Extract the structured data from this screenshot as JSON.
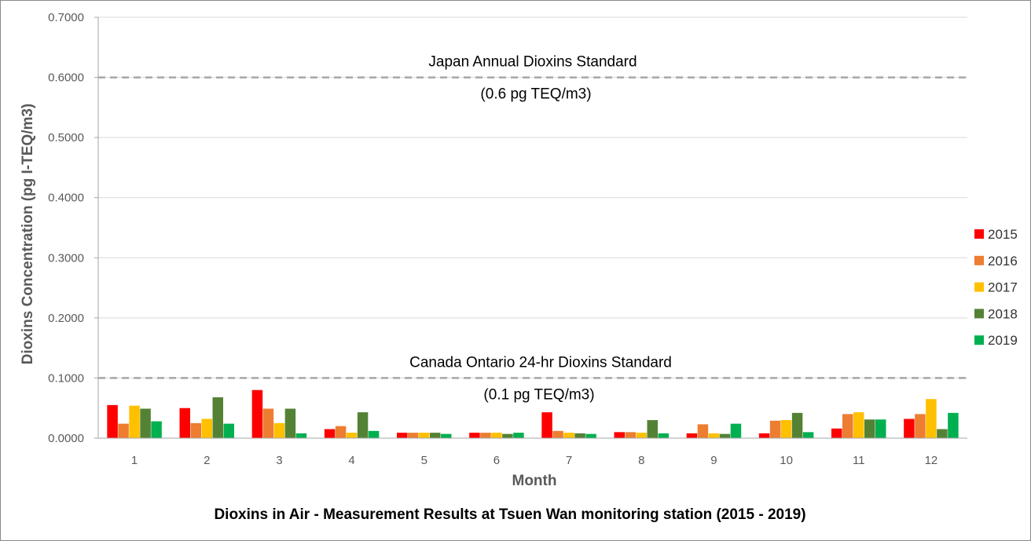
{
  "chart_data": {
    "type": "bar",
    "title": "Dioxins in Air - Measurement Results at Tsuen Wan monitoring station (2015 - 2019)",
    "xlabel": "Month",
    "ylabel": "Dioxins Concentration (pg I-TEQ/m3)",
    "ylim": [
      0,
      0.7
    ],
    "yticks": [
      "0.0000",
      "0.1000",
      "0.2000",
      "0.3000",
      "0.4000",
      "0.5000",
      "0.6000",
      "0.7000"
    ],
    "grid": true,
    "legend_position": "right",
    "categories": [
      "1",
      "2",
      "3",
      "4",
      "5",
      "6",
      "7",
      "8",
      "9",
      "10",
      "11",
      "12"
    ],
    "series": [
      {
        "name": "2015",
        "color": "#ff0000",
        "values": [
          0.055,
          0.05,
          0.08,
          0.015,
          0.009,
          0.009,
          0.043,
          0.01,
          0.008,
          0.008,
          0.016,
          0.032
        ]
      },
      {
        "name": "2016",
        "color": "#ed7d31",
        "values": [
          0.024,
          0.025,
          0.049,
          0.02,
          0.009,
          0.009,
          0.012,
          0.01,
          0.023,
          0.029,
          0.04,
          0.04
        ]
      },
      {
        "name": "2017",
        "color": "#ffc000",
        "values": [
          0.054,
          0.032,
          0.025,
          0.009,
          0.009,
          0.009,
          0.009,
          0.009,
          0.008,
          0.03,
          0.043,
          0.065
        ]
      },
      {
        "name": "2018",
        "color": "#548235",
        "values": [
          0.049,
          0.068,
          0.049,
          0.043,
          0.009,
          0.007,
          0.008,
          0.03,
          0.007,
          0.042,
          0.031,
          0.015
        ]
      },
      {
        "name": "2019",
        "color": "#00b050",
        "values": [
          0.028,
          0.024,
          0.008,
          0.012,
          0.007,
          0.009,
          0.007,
          0.008,
          0.024,
          0.01,
          0.031,
          0.042
        ]
      }
    ],
    "reference_lines": [
      {
        "value": 0.6,
        "label": "Japan Annual Dioxins Standard",
        "sublabel": "(0.6 pg TEQ/m3)"
      },
      {
        "value": 0.1,
        "label": "Canada Ontario 24-hr Dioxins Standard",
        "sublabel": "(0.1 pg TEQ/m3)"
      }
    ]
  }
}
